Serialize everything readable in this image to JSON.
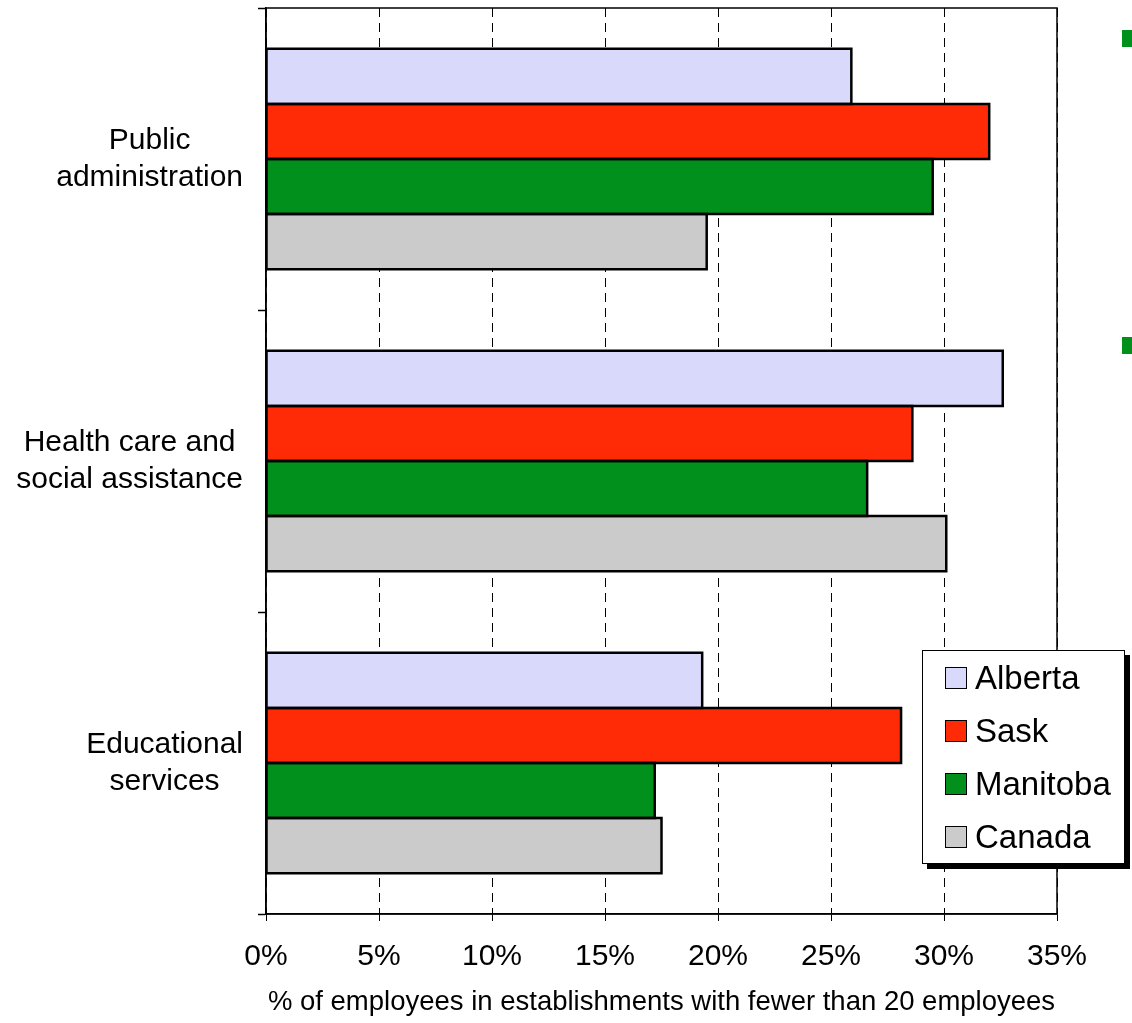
{
  "chart_data": {
    "type": "bar",
    "orientation": "horizontal",
    "categories": [
      "Public administration",
      "Health care and social assistance",
      "Educational services"
    ],
    "series": [
      {
        "name": "Alberta",
        "color": "#d9d9fb",
        "values": [
          25.9,
          32.6,
          19.3
        ]
      },
      {
        "name": "Sask",
        "color": "#ff2b07",
        "values": [
          32.0,
          28.6,
          28.1
        ]
      },
      {
        "name": "Manitoba",
        "color": "#00901b",
        "values": [
          29.5,
          26.6,
          17.2
        ]
      },
      {
        "name": "Canada",
        "color": "#cbcbcb",
        "values": [
          19.5,
          30.1,
          17.5
        ]
      }
    ],
    "xlabel": "% of employees in establishments with fewer than 20 employees",
    "xlim": [
      0,
      35
    ],
    "xticks": [
      {
        "value": 0,
        "label": "0%"
      },
      {
        "value": 5,
        "label": "5%"
      },
      {
        "value": 10,
        "label": "10%"
      },
      {
        "value": 15,
        "label": "15%"
      },
      {
        "value": 20,
        "label": "20%"
      },
      {
        "value": 25,
        "label": "25%"
      },
      {
        "value": 30,
        "label": "30%"
      },
      {
        "value": 35,
        "label": "35%"
      }
    ],
    "grid": "x",
    "legend": "bottom right"
  }
}
